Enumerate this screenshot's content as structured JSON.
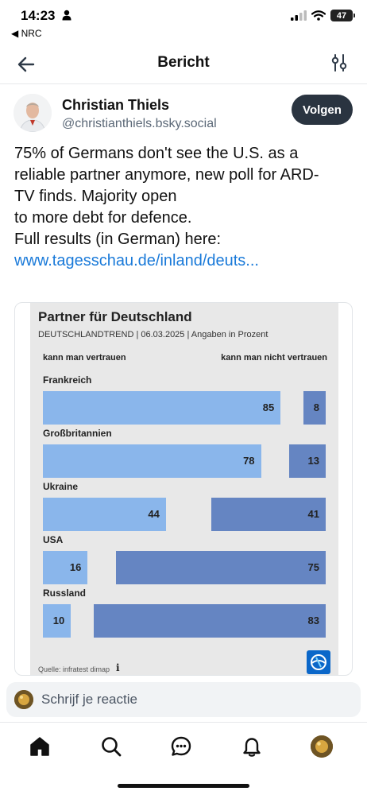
{
  "status_bar": {
    "time": "14:23",
    "back_app": "◀ NRC",
    "battery": "47"
  },
  "header": {
    "title": "Bericht"
  },
  "post": {
    "author_name": "Christian Thiels",
    "author_handle": "@christianthiels.bsky.social",
    "follow_label": "Volgen",
    "text_lines": [
      "75% of Germans don't see the U.S. as a",
      "reliable partner anymore, new poll for ARD-",
      "TV finds. Majority open",
      "to more debt for defence.",
      "Full results (in German) here:"
    ],
    "link": "www.tagesschau.de/inland/deuts..."
  },
  "chart_data": {
    "type": "bar",
    "title": "Partner für Deutschland",
    "subtitle": "DEUTSCHLANDTREND | 06.03.2025 | Angaben in Prozent",
    "series_labels": {
      "trust": "kann man vertrauen",
      "distrust": "kann man nicht vertrauen"
    },
    "categories": [
      "Frankreich",
      "Großbritannien",
      "Ukraine",
      "USA",
      "Russland"
    ],
    "series": [
      {
        "name": "kann man vertrauen",
        "values": [
          85,
          78,
          44,
          16,
          10
        ],
        "color": "#8ab6eb"
      },
      {
        "name": "kann man nicht vertrauen",
        "values": [
          8,
          13,
          41,
          75,
          83
        ],
        "color": "#6585c2"
      }
    ],
    "source": "Quelle: infratest dimap",
    "info_glyph": "i"
  },
  "reply": {
    "placeholder": "Schrijf je reactie"
  },
  "nav": {
    "items": [
      "home-icon",
      "search-icon",
      "chat-icon",
      "bell-icon",
      "profile-avatar"
    ]
  }
}
